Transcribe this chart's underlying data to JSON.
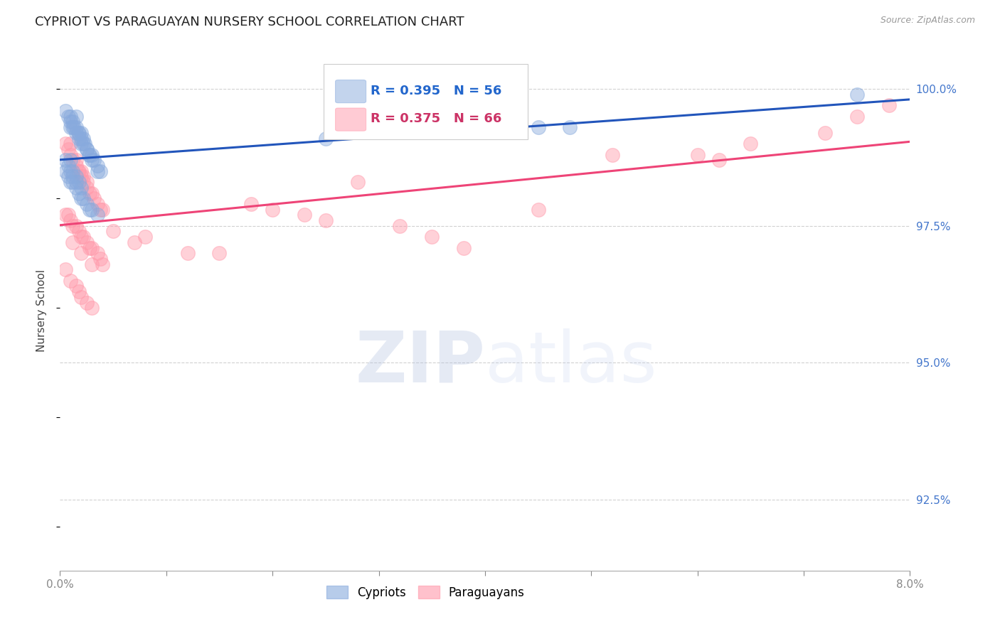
{
  "title": "CYPRIOT VS PARAGUAYAN NURSERY SCHOOL CORRELATION CHART",
  "source": "Source: ZipAtlas.com",
  "ylabel": "Nursery School",
  "ytick_values": [
    100.0,
    97.5,
    95.0,
    92.5
  ],
  "xmin": 0.0,
  "xmax": 8.0,
  "ymin": 91.2,
  "ymax": 100.7,
  "legend_blue_r": "R = 0.395",
  "legend_blue_n": "N = 56",
  "legend_pink_r": "R = 0.375",
  "legend_pink_n": "N = 66",
  "blue_color": "#88AADD",
  "pink_color": "#FF99AA",
  "blue_line_color": "#2255BB",
  "pink_line_color": "#EE4477",
  "blue_scatter_x": [
    0.05,
    0.08,
    0.1,
    0.1,
    0.1,
    0.12,
    0.12,
    0.13,
    0.15,
    0.15,
    0.15,
    0.17,
    0.18,
    0.18,
    0.2,
    0.2,
    0.2,
    0.22,
    0.22,
    0.23,
    0.25,
    0.25,
    0.27,
    0.28,
    0.3,
    0.3,
    0.32,
    0.35,
    0.35,
    0.38,
    0.05,
    0.08,
    0.1,
    0.1,
    0.12,
    0.12,
    0.15,
    0.15,
    0.18,
    0.2,
    0.05,
    0.08,
    0.1,
    0.12,
    0.15,
    0.18,
    0.2,
    0.22,
    0.25,
    0.28,
    0.3,
    0.35,
    2.5,
    4.5,
    4.8,
    7.5
  ],
  "blue_scatter_y": [
    99.6,
    99.5,
    99.5,
    99.4,
    99.3,
    99.4,
    99.3,
    99.3,
    99.5,
    99.3,
    99.2,
    99.2,
    99.2,
    99.1,
    99.2,
    99.1,
    99.0,
    99.1,
    99.0,
    99.0,
    98.9,
    98.9,
    98.8,
    98.8,
    98.8,
    98.7,
    98.7,
    98.6,
    98.5,
    98.5,
    98.7,
    98.6,
    98.7,
    98.5,
    98.5,
    98.4,
    98.4,
    98.3,
    98.3,
    98.2,
    98.5,
    98.4,
    98.3,
    98.3,
    98.2,
    98.1,
    98.0,
    98.0,
    97.9,
    97.8,
    97.8,
    97.7,
    99.1,
    99.3,
    99.3,
    99.9
  ],
  "pink_scatter_x": [
    0.05,
    0.08,
    0.1,
    0.1,
    0.12,
    0.15,
    0.15,
    0.17,
    0.18,
    0.2,
    0.2,
    0.22,
    0.22,
    0.25,
    0.25,
    0.28,
    0.3,
    0.32,
    0.35,
    0.38,
    0.4,
    0.05,
    0.08,
    0.1,
    0.12,
    0.15,
    0.18,
    0.2,
    0.22,
    0.25,
    0.28,
    0.3,
    0.35,
    0.38,
    0.4,
    0.05,
    0.1,
    0.15,
    0.18,
    0.2,
    0.25,
    0.3,
    0.8,
    1.2,
    1.8,
    2.0,
    2.3,
    2.5,
    3.2,
    3.5,
    3.8,
    4.5,
    5.2,
    6.0,
    6.5,
    7.2,
    7.5,
    7.8,
    0.12,
    0.2,
    0.3,
    0.5,
    0.7,
    1.5,
    2.8,
    6.2
  ],
  "pink_scatter_y": [
    99.0,
    98.9,
    99.0,
    98.8,
    98.7,
    98.7,
    98.6,
    98.5,
    98.5,
    98.5,
    98.4,
    98.4,
    98.3,
    98.3,
    98.2,
    98.1,
    98.1,
    98.0,
    97.9,
    97.8,
    97.8,
    97.7,
    97.7,
    97.6,
    97.5,
    97.5,
    97.4,
    97.3,
    97.3,
    97.2,
    97.1,
    97.1,
    97.0,
    96.9,
    96.8,
    96.7,
    96.5,
    96.4,
    96.3,
    96.2,
    96.1,
    96.0,
    97.3,
    97.0,
    97.9,
    97.8,
    97.7,
    97.6,
    97.5,
    97.3,
    97.1,
    97.8,
    98.8,
    98.8,
    99.0,
    99.2,
    99.5,
    99.7,
    97.2,
    97.0,
    96.8,
    97.4,
    97.2,
    97.0,
    98.3,
    98.7
  ]
}
